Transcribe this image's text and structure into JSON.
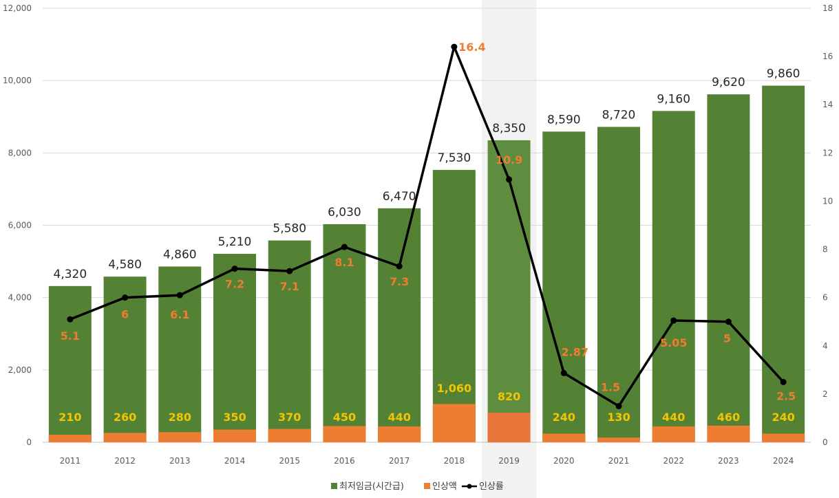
{
  "chart_data": {
    "type": "bar",
    "title": "",
    "xlabel": "",
    "ylabel": "",
    "categories": [
      "2011",
      "2012",
      "2013",
      "2014",
      "2015",
      "2016",
      "2017",
      "2018",
      "2019",
      "2020",
      "2021",
      "2022",
      "2023",
      "2024"
    ],
    "ylim": [
      0,
      12000
    ],
    "y2lim": [
      0,
      18
    ],
    "yticks": [
      0,
      2000,
      4000,
      6000,
      8000,
      10000,
      12000
    ],
    "ytick_labels": [
      "0",
      "2,000",
      "4,000",
      "6,000",
      "8,000",
      "10,000",
      "12,000"
    ],
    "y2ticks": [
      0,
      2,
      4,
      6,
      8,
      10,
      12,
      14,
      16,
      18
    ],
    "y2tick_labels": [
      "0",
      "2",
      "4",
      "6",
      "8",
      "10",
      "12",
      "14",
      "16",
      "18"
    ],
    "grid": true,
    "highlighted_category": "2019",
    "legend_position": "bottom",
    "series": [
      {
        "name": "최저임금(시간급)",
        "type": "bar",
        "axis": "left",
        "color": "#548235",
        "values": [
          4320,
          4580,
          4860,
          5210,
          5580,
          6030,
          6470,
          7530,
          8350,
          8590,
          8720,
          9160,
          9620,
          9860
        ],
        "labels": [
          "4,320",
          "4,580",
          "4,860",
          "5,210",
          "5,580",
          "6,030",
          "6,470",
          "7,530",
          "8,350",
          "8,590",
          "8,720",
          "9,160",
          "9,620",
          "9,860"
        ]
      },
      {
        "name": "인상액",
        "type": "bar",
        "axis": "left",
        "color": "#ed7d31",
        "values": [
          210,
          260,
          280,
          350,
          370,
          450,
          440,
          1060,
          820,
          240,
          130,
          440,
          460,
          240
        ],
        "labels": [
          "210",
          "260",
          "280",
          "350",
          "370",
          "450",
          "440",
          "1,060",
          "820",
          "240",
          "130",
          "440",
          "460",
          "240"
        ]
      },
      {
        "name": "인상률",
        "type": "line",
        "axis": "right",
        "color": "#000000",
        "values": [
          5.1,
          6,
          6.1,
          7.2,
          7.1,
          8.1,
          7.3,
          16.4,
          10.9,
          2.87,
          1.5,
          5.05,
          5,
          2.5
        ],
        "labels": [
          "5.1",
          "6",
          "6.1",
          "7.2",
          "7.1",
          "8.1",
          "7.3",
          "16.4",
          "10.9",
          "2.87",
          "1.5",
          "5.05",
          "5",
          "2.5"
        ]
      }
    ]
  }
}
